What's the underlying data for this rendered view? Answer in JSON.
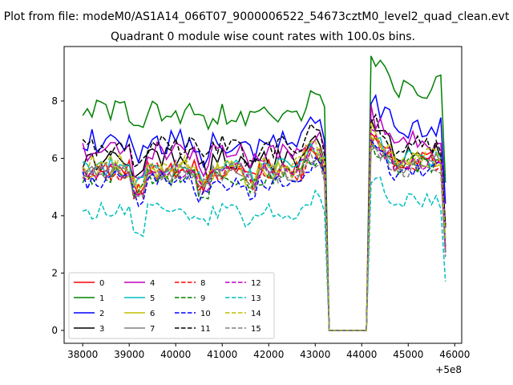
{
  "chart_data": {
    "type": "line",
    "suptitle": "Plot from file: modeM0/AS1A14_066T07_9000006522_54673cztM0_level2_quad_clean.evt",
    "title": "Quadrant 0 module wise count rates with 100.0s bins.",
    "xlabel": "",
    "ylabel": "",
    "x_offset_label": "+5e8",
    "xlim": [
      37600,
      46150
    ],
    "ylim": [
      -0.45,
      9.9
    ],
    "x_ticks": [
      38000,
      39000,
      40000,
      41000,
      42000,
      43000,
      44000,
      45000,
      46000
    ],
    "x_tick_labels": [
      "38000",
      "39000",
      "40000",
      "41000",
      "42000",
      "43000",
      "44000",
      "45000",
      "46000"
    ],
    "y_ticks": [
      0,
      2,
      4,
      6,
      8
    ],
    "y_tick_labels": [
      "0",
      "2",
      "4",
      "6",
      "8"
    ],
    "gap": [
      43300,
      44100
    ],
    "x_start": 38000,
    "x_step": 100,
    "n_points": 79,
    "legend": "lower-left",
    "series": [
      {
        "name": "0",
        "color": "#ff0000",
        "dash": "solid",
        "base": 5.6,
        "after": 5.9,
        "amp": 0.35
      },
      {
        "name": "1",
        "color": "#008000",
        "dash": "solid",
        "base": 7.6,
        "after": 8.5,
        "amp": 0.45
      },
      {
        "name": "2",
        "color": "#0000ff",
        "dash": "solid",
        "base": 6.6,
        "after": 7.1,
        "amp": 0.45
      },
      {
        "name": "3",
        "color": "#000000",
        "dash": "solid",
        "base": 6.0,
        "after": 6.3,
        "amp": 0.4
      },
      {
        "name": "4",
        "color": "#bf00bf",
        "dash": "solid",
        "base": 6.2,
        "after": 6.6,
        "amp": 0.4
      },
      {
        "name": "5",
        "color": "#00bfbf",
        "dash": "solid",
        "base": 5.7,
        "after": 6.0,
        "amp": 0.35
      },
      {
        "name": "6",
        "color": "#bfbf00",
        "dash": "solid",
        "base": 5.6,
        "after": 5.9,
        "amp": 0.35
      },
      {
        "name": "7",
        "color": "#808080",
        "dash": "solid",
        "base": 5.5,
        "after": 5.8,
        "amp": 0.35
      },
      {
        "name": "8",
        "color": "#ff0000",
        "dash": "dashed",
        "base": 5.5,
        "after": 5.8,
        "amp": 0.35
      },
      {
        "name": "9",
        "color": "#008000",
        "dash": "dashed",
        "base": 5.4,
        "after": 5.7,
        "amp": 0.35
      },
      {
        "name": "10",
        "color": "#0000ff",
        "dash": "dashed",
        "base": 5.2,
        "after": 5.5,
        "amp": 0.35
      },
      {
        "name": "11",
        "color": "#000000",
        "dash": "dashed",
        "base": 6.4,
        "after": 6.5,
        "amp": 0.4
      },
      {
        "name": "12",
        "color": "#bf00bf",
        "dash": "dashed",
        "base": 5.6,
        "after": 5.9,
        "amp": 0.35
      },
      {
        "name": "13",
        "color": "#00bfbf",
        "dash": "dashed",
        "base": 4.15,
        "after": 4.5,
        "amp": 0.3
      },
      {
        "name": "14",
        "color": "#bfbf00",
        "dash": "dashed",
        "base": 5.8,
        "after": 6.0,
        "amp": 0.35
      },
      {
        "name": "15",
        "color": "#808080",
        "dash": "dashed",
        "base": 5.5,
        "after": 5.7,
        "amp": 0.35
      }
    ]
  }
}
